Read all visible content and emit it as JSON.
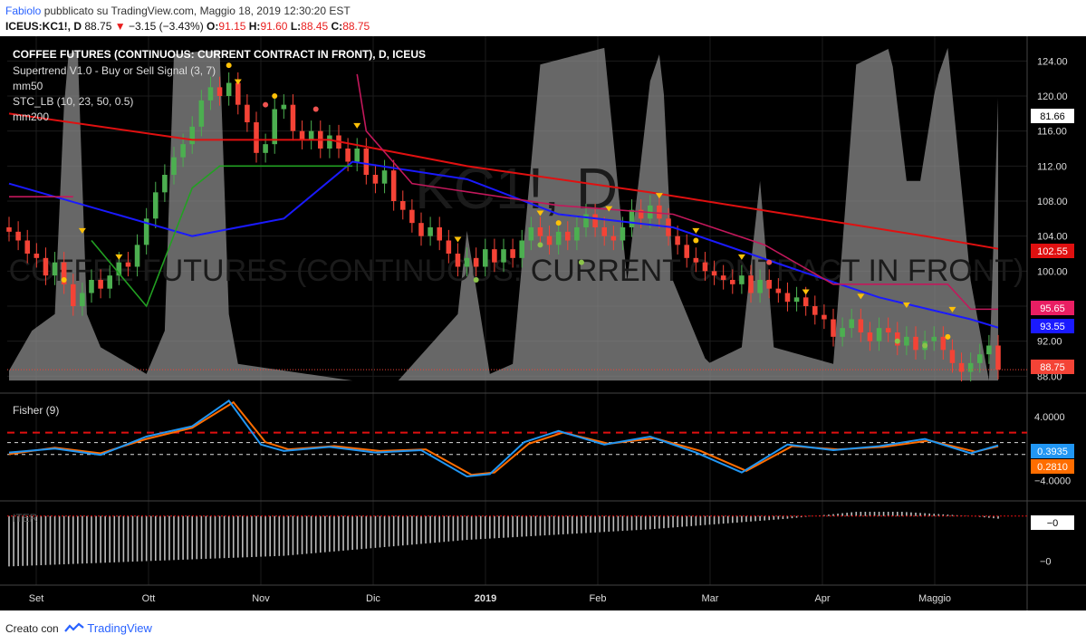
{
  "header": {
    "user": "Fabiolo",
    "published_text": "pubblicato su TradingView.com, Maggio 18, 2019 12:30:20 EST",
    "symbol": "ICEUS:KC1!, D",
    "last_price": "88.75",
    "change": "−3.15 (−3.43%)",
    "o_label": "O:",
    "o_val": "91.15",
    "h_label": "H:",
    "h_val": "91.60",
    "l_label": "L:",
    "l_val": "88.45",
    "c_label": "C:",
    "c_val": "88.75"
  },
  "legend": {
    "title": "COFFEE FUTURES (CONTINUOUS: CURRENT CONTRACT IN FRONT), D, ICEUS",
    "supertrend": "Supertrend V1.0 - Buy or Sell Signal (3, 7)",
    "mm50": "mm50",
    "stc": "STC_LB (10, 23, 50, 0.5)",
    "mm200": "mm200",
    "fisher": "Fisher (9)",
    "iter": "ITER"
  },
  "watermark": {
    "symbol": "KC1!, D",
    "name": "COFFEE FUTURES (CONTINUOUS: CURRENT CONTRACT IN FRONT)"
  },
  "price_labels": {
    "mm200": "102.55",
    "supertrend": "95.65",
    "mm50": "93.55",
    "close": "88.75",
    "hline": "81.66",
    "fisher_blue": "0.3935",
    "fisher_orange": "0.2810",
    "iter": "−0"
  },
  "footer": {
    "created_with": "Creato con",
    "brand": "TradingView"
  },
  "colors": {
    "background": "#000000",
    "up": "#4caf50",
    "down": "#f44336",
    "mm50": "#1a1aff",
    "mm200": "#e01010",
    "supertrend_up": "#22a022",
    "supertrend_down": "#c2185b",
    "stc": "#8a8a8a",
    "fisher_blue": "#2196f3",
    "fisher_orange": "#ff6d00",
    "iter": "#bdbdbd"
  },
  "chart_data": [
    {
      "type": "candlestick",
      "title": "COFFEE FUTURES (CONTINUOUS: CURRENT CONTRACT IN FRONT), D, ICEUS",
      "x_labels": [
        "Set",
        "Ott",
        "Nov",
        "Dic",
        "2019",
        "Feb",
        "Mar",
        "Apr",
        "Maggio"
      ],
      "y_ticks": [
        88.0,
        92.0,
        96.0,
        100.0,
        104.0,
        108.0,
        112.0,
        116.0,
        120.0,
        124.0
      ],
      "ylim": [
        87,
        126
      ],
      "close_series": [
        [
          0,
          104.5
        ],
        [
          4,
          103.5
        ],
        [
          8,
          102.0
        ],
        [
          12,
          101.5
        ],
        [
          16,
          99.5
        ],
        [
          20,
          101.0
        ],
        [
          24,
          98.5
        ],
        [
          28,
          96.0
        ],
        [
          32,
          97.5
        ],
        [
          36,
          99.0
        ],
        [
          40,
          98.0
        ],
        [
          44,
          99.5
        ],
        [
          48,
          101.0
        ],
        [
          52,
          100.5
        ],
        [
          56,
          103.0
        ],
        [
          60,
          106.0
        ],
        [
          64,
          109.0
        ],
        [
          68,
          111.0
        ],
        [
          72,
          113.0
        ],
        [
          76,
          114.5
        ],
        [
          80,
          116.5
        ],
        [
          84,
          119.5
        ],
        [
          88,
          121.0
        ],
        [
          92,
          120.0
        ],
        [
          96,
          121.5
        ],
        [
          100,
          119.0
        ],
        [
          104,
          117.0
        ],
        [
          108,
          113.5
        ],
        [
          112,
          114.5
        ],
        [
          116,
          118.5
        ],
        [
          120,
          119.0
        ],
        [
          124,
          116.0
        ],
        [
          128,
          115.0
        ],
        [
          132,
          116.0
        ],
        [
          136,
          114.0
        ],
        [
          140,
          115.5
        ],
        [
          144,
          114.0
        ],
        [
          148,
          112.5
        ],
        [
          152,
          114.0
        ],
        [
          156,
          111.0
        ],
        [
          160,
          110.0
        ],
        [
          164,
          111.5
        ],
        [
          168,
          108.0
        ],
        [
          172,
          107.0
        ],
        [
          176,
          105.5
        ],
        [
          180,
          104.0
        ],
        [
          184,
          105.0
        ],
        [
          188,
          103.5
        ],
        [
          192,
          102.0
        ],
        [
          196,
          100.5
        ],
        [
          200,
          101.5
        ],
        [
          204,
          100.5
        ],
        [
          208,
          102.5
        ],
        [
          212,
          101.0
        ],
        [
          216,
          102.5
        ],
        [
          220,
          101.5
        ],
        [
          224,
          103.5
        ],
        [
          228,
          105.0
        ],
        [
          232,
          104.0
        ],
        [
          236,
          103.0
        ],
        [
          240,
          104.5
        ],
        [
          244,
          103.5
        ],
        [
          248,
          105.0
        ],
        [
          252,
          106.5
        ],
        [
          256,
          105.0
        ],
        [
          260,
          104.0
        ],
        [
          264,
          103.5
        ],
        [
          268,
          105.0
        ],
        [
          272,
          107.0
        ],
        [
          276,
          106.0
        ],
        [
          280,
          107.5
        ],
        [
          284,
          106.0
        ],
        [
          288,
          104.0
        ],
        [
          292,
          103.0
        ],
        [
          296,
          101.5
        ],
        [
          300,
          101.0
        ],
        [
          304,
          100.0
        ],
        [
          308,
          99.5
        ],
        [
          312,
          99.0
        ],
        [
          316,
          98.5
        ],
        [
          320,
          99.5
        ],
        [
          324,
          97.5
        ],
        [
          328,
          99.0
        ],
        [
          332,
          98.0
        ],
        [
          336,
          97.5
        ],
        [
          340,
          96.5
        ],
        [
          344,
          97.0
        ],
        [
          348,
          96.0
        ],
        [
          352,
          95.0
        ],
        [
          356,
          94.5
        ],
        [
          360,
          92.5
        ],
        [
          364,
          93.5
        ],
        [
          368,
          94.5
        ],
        [
          372,
          93.0
        ],
        [
          376,
          92.0
        ],
        [
          380,
          93.5
        ],
        [
          384,
          93.0
        ],
        [
          388,
          91.5
        ],
        [
          392,
          92.5
        ],
        [
          396,
          91.0
        ],
        [
          400,
          92.0
        ],
        [
          404,
          92.5
        ],
        [
          408,
          91.0
        ],
        [
          412,
          89.5
        ],
        [
          416,
          88.5
        ],
        [
          420,
          89.5
        ],
        [
          424,
          90.5
        ],
        [
          428,
          91.5
        ],
        [
          432,
          88.75
        ]
      ],
      "series": [
        {
          "name": "mm50",
          "values": [
            [
              0,
              110.0
            ],
            [
              80,
              104.0
            ],
            [
              120,
              106.0
            ],
            [
              150,
              112.5
            ],
            [
              200,
              110.5
            ],
            [
              240,
              106.5
            ],
            [
              290,
              105.0
            ],
            [
              340,
              100.5
            ],
            [
              380,
              97.0
            ],
            [
              420,
              94.5
            ],
            [
              432,
              93.55
            ]
          ]
        },
        {
          "name": "mm200",
          "values": [
            [
              0,
              118.0
            ],
            [
              80,
              115.0
            ],
            [
              140,
              115.0
            ],
            [
              200,
              112.0
            ],
            [
              280,
              109.0
            ],
            [
              340,
              106.5
            ],
            [
              400,
              104.0
            ],
            [
              432,
              102.55
            ]
          ]
        },
        {
          "name": "Supertrend V1.0 - Buy or Sell Signal (3, 7)",
          "values": [
            [
              0,
              108.5
            ],
            [
              28,
              108.5
            ],
            [
              36,
              103.5
            ],
            [
              60,
              96.0
            ],
            [
              80,
              109.5
            ],
            [
              92,
              112.0
            ],
            [
              150,
              112.0
            ],
            [
              152,
              122.5
            ],
            [
              156,
              116.0
            ],
            [
              176,
              110.0
            ],
            [
              240,
              107.5
            ],
            [
              290,
              106.5
            ],
            [
              330,
              103.0
            ],
            [
              360,
              98.5
            ],
            [
              410,
              98.5
            ],
            [
              420,
              95.65
            ],
            [
              432,
              95.65
            ]
          ]
        }
      ],
      "hline": 81.66
    },
    {
      "type": "line",
      "title": "Fisher (9)",
      "y_ticks": [
        4.0,
        -4.0
      ],
      "ylim": [
        -6,
        6.5
      ],
      "dashed_levels": [
        2.0,
        0.75,
        -0.75
      ],
      "series": [
        {
          "name": "Fisher",
          "values": [
            [
              0,
              -0.5
            ],
            [
              20,
              0
            ],
            [
              40,
              -0.8
            ],
            [
              60,
              1.5
            ],
            [
              80,
              2.8
            ],
            [
              96,
              6.0
            ],
            [
              110,
              0.5
            ],
            [
              120,
              -0.3
            ],
            [
              140,
              0.2
            ],
            [
              160,
              -0.5
            ],
            [
              180,
              -0.2
            ],
            [
              200,
              -3.5
            ],
            [
              210,
              -3.2
            ],
            [
              225,
              0.8
            ],
            [
              240,
              2.2
            ],
            [
              260,
              0.5
            ],
            [
              280,
              1.5
            ],
            [
              300,
              -0.5
            ],
            [
              320,
              -3.0
            ],
            [
              340,
              0.5
            ],
            [
              360,
              -0.2
            ],
            [
              380,
              0.3
            ],
            [
              400,
              1.2
            ],
            [
              420,
              -0.6
            ],
            [
              432,
              0.3935
            ]
          ]
        },
        {
          "name": "Fisher trigger",
          "values": [
            [
              0,
              -0.7
            ],
            [
              20,
              0.1
            ],
            [
              40,
              -0.6
            ],
            [
              60,
              1.2
            ],
            [
              80,
              2.6
            ],
            [
              98,
              5.8
            ],
            [
              112,
              0.8
            ],
            [
              122,
              -0.1
            ],
            [
              142,
              0.3
            ],
            [
              162,
              -0.3
            ],
            [
              182,
              -0.1
            ],
            [
              202,
              -3.3
            ],
            [
              212,
              -3.0
            ],
            [
              227,
              0.6
            ],
            [
              242,
              2.0
            ],
            [
              262,
              0.6
            ],
            [
              282,
              1.3
            ],
            [
              302,
              -0.3
            ],
            [
              322,
              -2.8
            ],
            [
              342,
              0.3
            ],
            [
              362,
              -0.1
            ],
            [
              382,
              0.2
            ],
            [
              402,
              1.0
            ],
            [
              422,
              -0.4
            ],
            [
              432,
              0.281
            ]
          ]
        }
      ]
    },
    {
      "type": "bar",
      "title": "ITER",
      "y_ticks": [
        0
      ],
      "ylim": [
        -1.2,
        0.2
      ]
    }
  ]
}
